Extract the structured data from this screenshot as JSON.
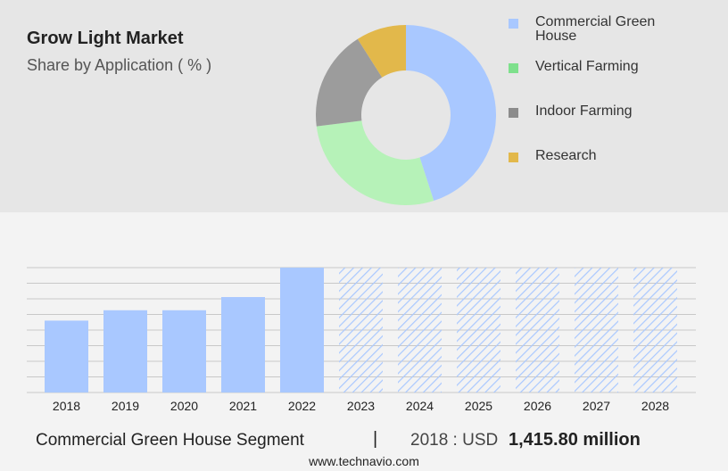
{
  "header": {
    "title": "Grow Light Market",
    "subtitle": "Share by Application ( % )"
  },
  "chart_data": [
    {
      "type": "pie",
      "subtype": "donut",
      "categories": [
        "Commercial Green House",
        "Vertical Farming",
        "Indoor Farming",
        "Research"
      ],
      "values": [
        45,
        28,
        18,
        9
      ],
      "colors": [
        "#a9c8ff",
        "#b6f2b8",
        "#9c9c9c",
        "#e2b84b"
      ],
      "legend": {
        "position": "right",
        "entries": [
          "Commercial Green House",
          "Vertical Farming",
          "Indoor Farming",
          "Research"
        ],
        "swatch_colors": [
          "#a9c8ff",
          "#7ee08c",
          "#8c8c8c",
          "#e2b84b"
        ]
      }
    },
    {
      "type": "bar",
      "categories": [
        "2018",
        "2019",
        "2020",
        "2021",
        "2022",
        "2023",
        "2024",
        "2025",
        "2026",
        "2027",
        "2028"
      ],
      "values": [
        1415.8,
        1620,
        1620,
        1880,
        2460,
        2460,
        2460,
        2460,
        2460,
        2460,
        2460
      ],
      "forecast_start_index": 5,
      "series_color": "#a9c8ff",
      "forecast_pattern": "diagonal-hatch",
      "ylim": [
        0,
        2460
      ],
      "grid": true
    }
  ],
  "footer": {
    "segment": "Commercial Green House Segment",
    "separator": "|",
    "year_label": "2018 : USD",
    "value": "1,415.80 million",
    "source": "www.technavio.com"
  }
}
